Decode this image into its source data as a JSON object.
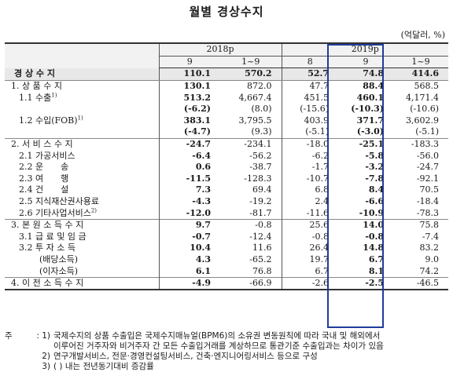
{
  "title": "월별 경상수지",
  "unit": "(억달러, %)",
  "columns": {
    "year_2018": "2018p",
    "year_2019": "2019p",
    "sub": [
      "9",
      "1~9",
      "8",
      "9",
      "1~9"
    ]
  },
  "rows": [
    {
      "label": "경 상 수 지",
      "values": [
        "110.1",
        "570.2",
        "52.7",
        "74.8",
        "414.6"
      ]
    },
    {
      "label": "1. 상 품 수 지",
      "values": [
        "130.1",
        "872.0",
        "47.7",
        "88.4",
        "568.5"
      ]
    },
    {
      "label": "1.1 수출",
      "sup": "1)",
      "values": [
        "513.2",
        "4,667.4",
        "451.5",
        "460.1",
        "4,171.4"
      ]
    },
    {
      "label": "",
      "values": [
        "(-6.2)",
        "(8.0)",
        "(-15.6)",
        "(-10.3)",
        "(-10.6)"
      ]
    },
    {
      "label": "1.2 수입(FOB)",
      "sup": "1)",
      "values": [
        "383.1",
        "3,795.5",
        "403.9",
        "371.7",
        "3,602.9"
      ]
    },
    {
      "label": "",
      "values": [
        "(-4.7)",
        "(9.3)",
        "(-5.1)",
        "(-3.0)",
        "(-5.1)"
      ]
    },
    {
      "label": "2. 서 비 스 수 지",
      "values": [
        "-24.7",
        "-234.1",
        "-18.0",
        "-25.1",
        "-183.3"
      ]
    },
    {
      "label": "2.1 가공서비스",
      "values": [
        "-6.4",
        "-56.2",
        "-6.2",
        "-5.8",
        "-56.0"
      ]
    },
    {
      "label": "2.2 운　　송",
      "values": [
        "0.6",
        "-38.7",
        "-1.7",
        "-3.2",
        "-24.7"
      ]
    },
    {
      "label": "2.3 여　　행",
      "values": [
        "-11.5",
        "-128.3",
        "-10.7",
        "-7.8",
        "-92.1"
      ]
    },
    {
      "label": "2.4 건　　설",
      "values": [
        "7.3",
        "69.4",
        "6.8",
        "8.4",
        "70.5"
      ]
    },
    {
      "label": "2.5 지식재산권사용료",
      "values": [
        "-4.3",
        "-19.2",
        "2.4",
        "-6.6",
        "-18.4"
      ]
    },
    {
      "label": "2.6 기타사업서비스",
      "sup": "2)",
      "values": [
        "-12.0",
        "-81.7",
        "-11.6",
        "-10.9",
        "-78.3"
      ]
    },
    {
      "label": "3. 본 원 소 득 수 지",
      "values": [
        "9.7",
        "-0.8",
        "25.6",
        "14.0",
        "75.8"
      ]
    },
    {
      "label": "3.1 급 료 및 임 금",
      "values": [
        "-0.7",
        "-12.4",
        "-0.8",
        "-0.8",
        "-7.4"
      ]
    },
    {
      "label": "3.2 투 자 소 득",
      "values": [
        "10.4",
        "11.6",
        "26.4",
        "14.8",
        "83.2"
      ]
    },
    {
      "label": "(배당소득)",
      "values": [
        "4.3",
        "-65.2",
        "19.7",
        "6.7",
        "9.0"
      ]
    },
    {
      "label": "(이자소득)",
      "values": [
        "6.1",
        "76.8",
        "6.7",
        "8.1",
        "74.2"
      ]
    },
    {
      "label": "4. 이 전 소 득 수 지",
      "values": [
        "-4.9",
        "-66.9",
        "-2.6",
        "-2.5",
        "-46.5"
      ]
    }
  ],
  "notes": [
    {
      "label": "주",
      "mark": ":  1)",
      "text": "국제수지의 상품 수출입은 국제수지매뉴얼(BPM6)의 소유권 변동원칙에 따라 국내 및 해외에서"
    },
    {
      "label": "",
      "mark": "",
      "text": "이루어진 거주자와 비거주자 간 모든 수출입거래를 계상하므로 통관기준 수출입과는 차이가 있음"
    },
    {
      "label": "",
      "mark": "2)",
      "text": "연구개발서비스, 전문·경영컨설팅서비스, 건축·엔지니어링서비스 등으로 구성"
    },
    {
      "label": "",
      "mark": "3)",
      "text": "( ) 내는 전년동기대비 증감률"
    }
  ]
}
